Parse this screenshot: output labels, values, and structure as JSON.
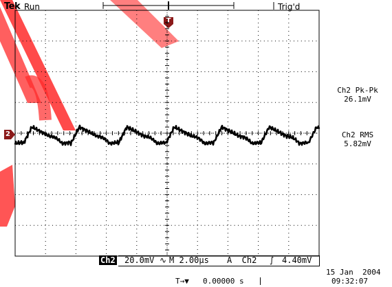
{
  "header": {
    "brand": "Tek",
    "acq_state": "Run",
    "trigger_state": "Trig'd"
  },
  "measurements": [
    {
      "label": "Ch2 Pk-Pk",
      "value": "26.1mV"
    },
    {
      "label": "Ch2 RMS",
      "value": "5.82mV"
    }
  ],
  "channel_marker": "2",
  "trigger_marker": "T",
  "status_bar": {
    "channel": "Ch2",
    "volts_div": "20.0mV",
    "bw_symbol": "∿",
    "timebase": "M 2.00µs",
    "trigger_source": "A  Ch2",
    "trigger_slope": "⨛",
    "trigger_level": "4.40mV"
  },
  "footer": {
    "trigger_pos_icon": "T→▼",
    "trigger_position": "0.00000 s",
    "date": "15 Jan  2004",
    "time": "09:32:07"
  },
  "colors": {
    "background": "#ffffff",
    "grid": "#000000",
    "trace": "#000000",
    "marker_bg": "#8b1a1a",
    "watermark": "#e00000"
  },
  "icons": [
    "channel-2-ground-marker-icon",
    "trigger-position-marker-icon",
    "trigger-slope-icon",
    "bandwidth-limit-icon"
  ]
}
